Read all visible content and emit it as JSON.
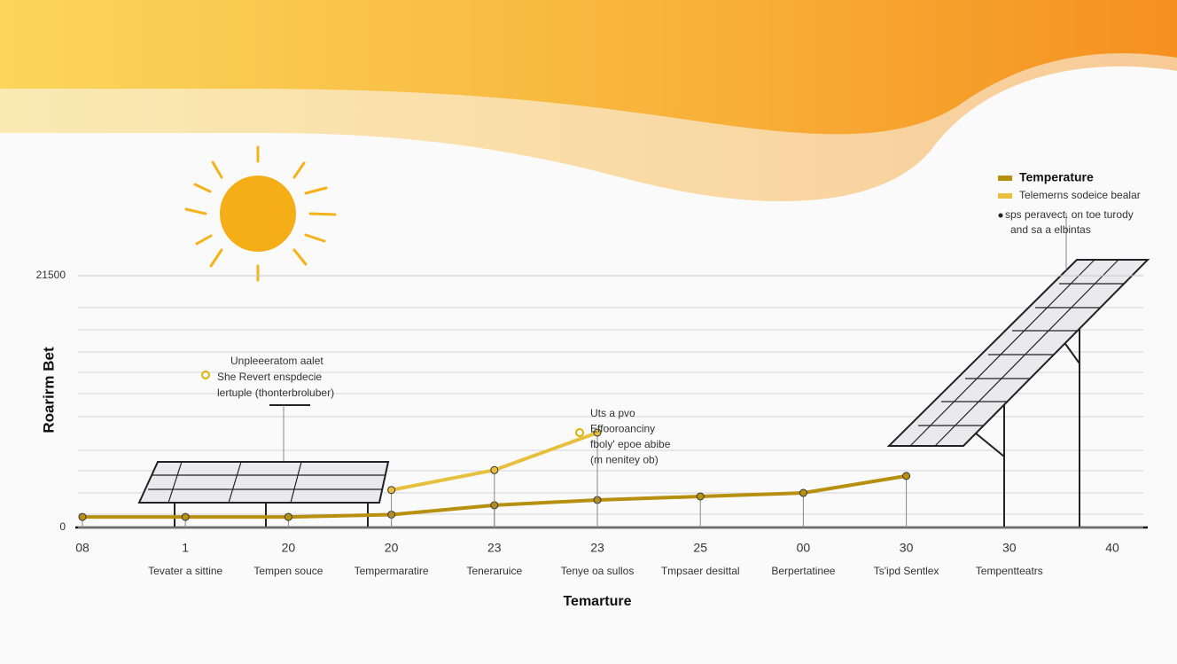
{
  "chart_data": {
    "type": "line",
    "y_axis_label": "Roarirm Bet",
    "x_axis_label": "Temarture",
    "categories": [
      "08",
      "1",
      "20",
      "20",
      "23",
      "23",
      "25",
      "00",
      "30",
      "30",
      "40"
    ],
    "sublabels": [
      null,
      "Tevater a sittine",
      "Tempen souce",
      "Tempermaratire",
      "Teneraruice",
      "Tenye oa sullos",
      "Tmpsaer desittal",
      "Berpertatinee",
      "Ts'ipd Sentlex",
      "Tempentteatrs",
      null
    ],
    "series": [
      {
        "name": "Temperature",
        "color": "#b8900f",
        "values": [
          900,
          900,
          900,
          1100,
          1900,
          2350,
          2650,
          2950,
          4400,
          null,
          null
        ]
      },
      {
        "name": "Telemerns sodeice bealar",
        "color": "#e8c040",
        "values": [
          null,
          null,
          null,
          3200,
          4900,
          8100,
          null,
          null,
          null,
          null,
          null
        ]
      }
    ],
    "legend_notes": [
      "sps peravect. on toe turody",
      "and sa a elbintas"
    ],
    "annotations": [
      {
        "lines": [
          "Unpleeeratom aalet",
          "She Revert enspdecie",
          "lertuple (thonterbroluber)"
        ]
      },
      {
        "lines": [
          "Uts a pvo",
          "Effooroanciny",
          "fboly' epoe abibe",
          "(m nenitey ob)"
        ]
      }
    ],
    "ylim": [
      0,
      21500
    ],
    "yticks": [
      0,
      21500
    ],
    "grid": true
  }
}
